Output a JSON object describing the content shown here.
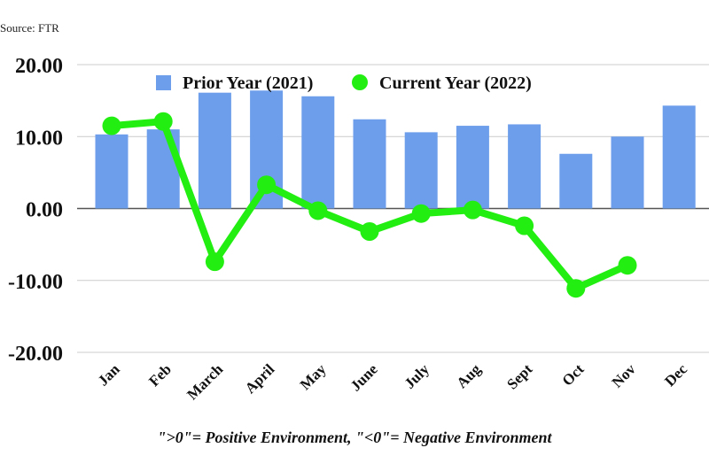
{
  "source_note": "Source: FTR",
  "footnote": "\">0\"= Positive Environment, \"<0\"= Negative Environment",
  "chart_data": {
    "type": "bar",
    "title": "",
    "xlabel": "",
    "ylabel": "",
    "categories": [
      "Jan",
      "Feb",
      "March",
      "April",
      "May",
      "June",
      "July",
      "Aug",
      "Sept",
      "Oct",
      "Nov",
      "Dec"
    ],
    "ylim": [
      -20,
      20
    ],
    "yticks": [
      "20.00",
      "10.00",
      "0.00",
      "-10.00",
      "-20.00"
    ],
    "grid": true,
    "legend": "top",
    "series": [
      {
        "name": "Prior Year (2021)",
        "type": "bar",
        "color": "#6d9eeb",
        "values": [
          10.3,
          11.0,
          16.1,
          16.4,
          15.6,
          12.4,
          10.6,
          11.5,
          11.7,
          7.6,
          10.0,
          14.3
        ]
      },
      {
        "name": "Current Year (2022)",
        "type": "line",
        "color": "#22ee11",
        "values": [
          11.5,
          12.1,
          -7.4,
          3.3,
          -0.3,
          -3.2,
          -0.7,
          -0.2,
          -2.4,
          -11.1,
          -7.9,
          null
        ]
      }
    ]
  }
}
